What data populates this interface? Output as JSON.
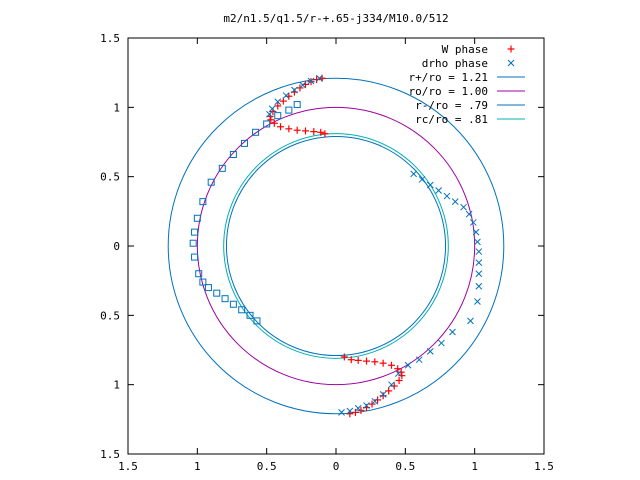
{
  "chart_data": {
    "type": "scatter",
    "title": "m2/n1.5/q1.5/r-+.65-j334/M10.0/512",
    "xlabel": "",
    "ylabel": "",
    "xlim": [
      -1.5,
      1.5
    ],
    "ylim": [
      -1.5,
      1.5
    ],
    "x_ticks": [
      -1.5,
      -1,
      -0.5,
      0,
      0.5,
      1,
      1.5
    ],
    "x_tick_labels": [
      "1.5",
      "1",
      "0.5",
      "0",
      "0.5",
      "1",
      "1.5"
    ],
    "y_ticks": [
      1.5,
      1,
      0.5,
      0,
      -0.5,
      -1,
      -1.5
    ],
    "y_tick_labels": [
      "1.5",
      "1",
      "0.5",
      "0",
      "0.5",
      "1",
      "1.5"
    ],
    "grid": false,
    "legend_position": "top-right",
    "series": [
      {
        "name": "W phase",
        "marker": "+",
        "color": "#ff0000",
        "points": [
          [
            -0.1,
            1.21
          ],
          [
            -0.14,
            1.2
          ],
          [
            -0.18,
            1.185
          ],
          [
            -0.22,
            1.165
          ],
          [
            -0.26,
            1.14
          ],
          [
            -0.3,
            1.11
          ],
          [
            -0.34,
            1.08
          ],
          [
            -0.38,
            1.045
          ],
          [
            -0.42,
            1.01
          ],
          [
            -0.455,
            0.97
          ],
          [
            -0.475,
            0.935
          ],
          [
            -0.47,
            0.91
          ],
          [
            -0.445,
            0.885
          ],
          [
            -0.4,
            0.86
          ],
          [
            -0.34,
            0.845
          ],
          [
            -0.28,
            0.835
          ],
          [
            -0.22,
            0.83
          ],
          [
            -0.16,
            0.825
          ],
          [
            -0.11,
            0.82
          ],
          [
            -0.08,
            0.81
          ],
          [
            0.1,
            -1.21
          ],
          [
            0.14,
            -1.2
          ],
          [
            0.18,
            -1.185
          ],
          [
            0.22,
            -1.165
          ],
          [
            0.26,
            -1.14
          ],
          [
            0.3,
            -1.11
          ],
          [
            0.34,
            -1.08
          ],
          [
            0.38,
            -1.045
          ],
          [
            0.42,
            -1.01
          ],
          [
            0.455,
            -0.97
          ],
          [
            0.475,
            -0.935
          ],
          [
            0.47,
            -0.91
          ],
          [
            0.445,
            -0.885
          ],
          [
            0.4,
            -0.86
          ],
          [
            0.34,
            -0.845
          ],
          [
            0.28,
            -0.835
          ],
          [
            0.22,
            -0.83
          ],
          [
            0.16,
            -0.825
          ],
          [
            0.11,
            -0.82
          ],
          [
            0.06,
            -0.8
          ]
        ]
      },
      {
        "name": "drho phase",
        "marker": "x",
        "color": "#0072bd",
        "points": [
          [
            -0.12,
            1.21
          ],
          [
            -0.18,
            1.19
          ],
          [
            -0.24,
            1.16
          ],
          [
            -0.3,
            1.125
          ],
          [
            -0.36,
            1.085
          ],
          [
            -0.42,
            1.04
          ],
          [
            -0.46,
            0.99
          ],
          [
            -0.48,
            0.95
          ],
          [
            0.56,
            0.52
          ],
          [
            0.62,
            0.48
          ],
          [
            0.68,
            0.44
          ],
          [
            0.74,
            0.4
          ],
          [
            0.8,
            0.36
          ],
          [
            0.86,
            0.32
          ],
          [
            0.92,
            0.28
          ],
          [
            0.96,
            0.23
          ],
          [
            0.99,
            0.17
          ],
          [
            1.01,
            0.1
          ],
          [
            1.02,
            0.03
          ],
          [
            1.03,
            -0.04
          ],
          [
            1.03,
            -0.12
          ],
          [
            1.03,
            -0.2
          ],
          [
            1.03,
            -0.29
          ],
          [
            1.02,
            -0.4
          ],
          [
            0.97,
            -0.54
          ],
          [
            0.84,
            -0.62
          ],
          [
            0.76,
            -0.7
          ],
          [
            0.68,
            -0.76
          ],
          [
            0.6,
            -0.82
          ],
          [
            0.52,
            -0.86
          ],
          [
            0.45,
            -0.92
          ],
          [
            0.4,
            -1.0
          ],
          [
            0.34,
            -1.07
          ],
          [
            0.28,
            -1.12
          ],
          [
            0.22,
            -1.15
          ],
          [
            0.16,
            -1.17
          ],
          [
            0.1,
            -1.19
          ],
          [
            0.04,
            -1.2
          ]
        ]
      },
      {
        "name": "drho phase (square)",
        "marker": "square",
        "color": "#0072bd",
        "points": [
          [
            -0.28,
            1.02
          ],
          [
            -0.34,
            0.98
          ],
          [
            -0.42,
            0.94
          ],
          [
            -0.5,
            0.88
          ],
          [
            -0.58,
            0.82
          ],
          [
            -0.66,
            0.74
          ],
          [
            -0.74,
            0.66
          ],
          [
            -0.82,
            0.56
          ],
          [
            -0.9,
            0.46
          ],
          [
            -0.96,
            0.32
          ],
          [
            -1.0,
            0.2
          ],
          [
            -1.02,
            0.1
          ],
          [
            -1.03,
            0.02
          ],
          [
            -1.02,
            -0.08
          ],
          [
            -0.99,
            -0.2
          ],
          [
            -0.96,
            -0.26
          ],
          [
            -0.92,
            -0.3
          ],
          [
            -0.86,
            -0.34
          ],
          [
            -0.8,
            -0.38
          ],
          [
            -0.74,
            -0.42
          ],
          [
            -0.68,
            -0.46
          ],
          [
            -0.62,
            -0.5
          ],
          [
            -0.57,
            -0.54
          ]
        ]
      },
      {
        "name": "r+/ro = 1.21",
        "type": "circle",
        "radius": 1.21,
        "color": "#0072bd"
      },
      {
        "name": "ro/ro = 1.00",
        "type": "circle",
        "radius": 1.0,
        "color": "#a000a0"
      },
      {
        "name": "r-/ro = .79",
        "type": "circle",
        "radius": 0.79,
        "color": "#0072bd"
      },
      {
        "name": "rc/ro = .81",
        "type": "circle",
        "radius": 0.81,
        "color": "#00b0b0"
      }
    ],
    "legend": [
      {
        "label": "W phase",
        "marker": "+",
        "color": "#ff0000"
      },
      {
        "label": "drho phase",
        "marker": "x",
        "color": "#0072bd"
      },
      {
        "label": "r+/ro = 1.21",
        "marker": "line",
        "color": "#0072bd"
      },
      {
        "label": "ro/ro = 1.00",
        "marker": "line",
        "color": "#a000a0"
      },
      {
        "label": "r-/ro = .79",
        "marker": "line",
        "color": "#0072bd"
      },
      {
        "label": "rc/ro = .81",
        "marker": "line",
        "color": "#00b0b0"
      }
    ]
  }
}
